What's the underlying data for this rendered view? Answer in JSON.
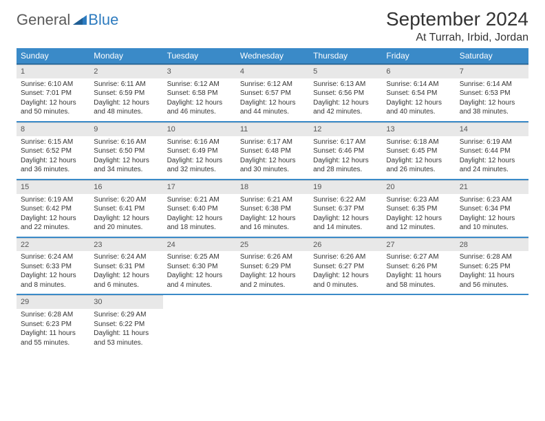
{
  "logo": {
    "text1": "General",
    "text2": "Blue"
  },
  "title": "September 2024",
  "subtitle": "At Turrah, Irbid, Jordan",
  "headers": [
    "Sunday",
    "Monday",
    "Tuesday",
    "Wednesday",
    "Thursday",
    "Friday",
    "Saturday"
  ],
  "colors": {
    "header_bg": "#3a8ac8",
    "header_border": "#2d6ea0",
    "daynum_bg": "#e8e8e8",
    "week_border": "#3a8ac8",
    "logo_gray": "#5a5a5a",
    "logo_blue": "#2d7bbf",
    "text": "#333333"
  },
  "weeks": [
    [
      {
        "n": "1",
        "sr": "6:10 AM",
        "ss": "7:01 PM",
        "dl": "12 hours and 50 minutes."
      },
      {
        "n": "2",
        "sr": "6:11 AM",
        "ss": "6:59 PM",
        "dl": "12 hours and 48 minutes."
      },
      {
        "n": "3",
        "sr": "6:12 AM",
        "ss": "6:58 PM",
        "dl": "12 hours and 46 minutes."
      },
      {
        "n": "4",
        "sr": "6:12 AM",
        "ss": "6:57 PM",
        "dl": "12 hours and 44 minutes."
      },
      {
        "n": "5",
        "sr": "6:13 AM",
        "ss": "6:56 PM",
        "dl": "12 hours and 42 minutes."
      },
      {
        "n": "6",
        "sr": "6:14 AM",
        "ss": "6:54 PM",
        "dl": "12 hours and 40 minutes."
      },
      {
        "n": "7",
        "sr": "6:14 AM",
        "ss": "6:53 PM",
        "dl": "12 hours and 38 minutes."
      }
    ],
    [
      {
        "n": "8",
        "sr": "6:15 AM",
        "ss": "6:52 PM",
        "dl": "12 hours and 36 minutes."
      },
      {
        "n": "9",
        "sr": "6:16 AM",
        "ss": "6:50 PM",
        "dl": "12 hours and 34 minutes."
      },
      {
        "n": "10",
        "sr": "6:16 AM",
        "ss": "6:49 PM",
        "dl": "12 hours and 32 minutes."
      },
      {
        "n": "11",
        "sr": "6:17 AM",
        "ss": "6:48 PM",
        "dl": "12 hours and 30 minutes."
      },
      {
        "n": "12",
        "sr": "6:17 AM",
        "ss": "6:46 PM",
        "dl": "12 hours and 28 minutes."
      },
      {
        "n": "13",
        "sr": "6:18 AM",
        "ss": "6:45 PM",
        "dl": "12 hours and 26 minutes."
      },
      {
        "n": "14",
        "sr": "6:19 AM",
        "ss": "6:44 PM",
        "dl": "12 hours and 24 minutes."
      }
    ],
    [
      {
        "n": "15",
        "sr": "6:19 AM",
        "ss": "6:42 PM",
        "dl": "12 hours and 22 minutes."
      },
      {
        "n": "16",
        "sr": "6:20 AM",
        "ss": "6:41 PM",
        "dl": "12 hours and 20 minutes."
      },
      {
        "n": "17",
        "sr": "6:21 AM",
        "ss": "6:40 PM",
        "dl": "12 hours and 18 minutes."
      },
      {
        "n": "18",
        "sr": "6:21 AM",
        "ss": "6:38 PM",
        "dl": "12 hours and 16 minutes."
      },
      {
        "n": "19",
        "sr": "6:22 AM",
        "ss": "6:37 PM",
        "dl": "12 hours and 14 minutes."
      },
      {
        "n": "20",
        "sr": "6:23 AM",
        "ss": "6:35 PM",
        "dl": "12 hours and 12 minutes."
      },
      {
        "n": "21",
        "sr": "6:23 AM",
        "ss": "6:34 PM",
        "dl": "12 hours and 10 minutes."
      }
    ],
    [
      {
        "n": "22",
        "sr": "6:24 AM",
        "ss": "6:33 PM",
        "dl": "12 hours and 8 minutes."
      },
      {
        "n": "23",
        "sr": "6:24 AM",
        "ss": "6:31 PM",
        "dl": "12 hours and 6 minutes."
      },
      {
        "n": "24",
        "sr": "6:25 AM",
        "ss": "6:30 PM",
        "dl": "12 hours and 4 minutes."
      },
      {
        "n": "25",
        "sr": "6:26 AM",
        "ss": "6:29 PM",
        "dl": "12 hours and 2 minutes."
      },
      {
        "n": "26",
        "sr": "6:26 AM",
        "ss": "6:27 PM",
        "dl": "12 hours and 0 minutes."
      },
      {
        "n": "27",
        "sr": "6:27 AM",
        "ss": "6:26 PM",
        "dl": "11 hours and 58 minutes."
      },
      {
        "n": "28",
        "sr": "6:28 AM",
        "ss": "6:25 PM",
        "dl": "11 hours and 56 minutes."
      }
    ],
    [
      {
        "n": "29",
        "sr": "6:28 AM",
        "ss": "6:23 PM",
        "dl": "11 hours and 55 minutes."
      },
      {
        "n": "30",
        "sr": "6:29 AM",
        "ss": "6:22 PM",
        "dl": "11 hours and 53 minutes."
      },
      null,
      null,
      null,
      null,
      null
    ]
  ],
  "labels": {
    "sunrise": "Sunrise: ",
    "sunset": "Sunset: ",
    "daylight": "Daylight: "
  }
}
